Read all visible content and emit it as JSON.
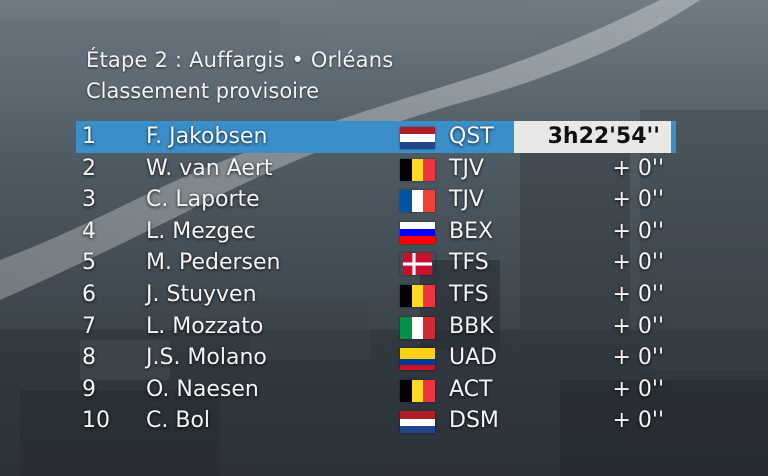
{
  "stage": {
    "title": "Étape 2 : Auffargis • Orléans",
    "subtitle": "Classement provisoire"
  },
  "colors": {
    "leader_bar": "#3b8fc9",
    "time_box": "#e8e8e6",
    "text": "#f4f4f4"
  },
  "standings": [
    {
      "rank": "1",
      "name": "F. Jakobsen",
      "flag": "netherlands-flag-icon",
      "team": "QST",
      "time": "3h22'54''"
    },
    {
      "rank": "2",
      "name": "W. van Aert",
      "flag": "belgium-flag-icon",
      "team": "TJV",
      "time": "+  0''"
    },
    {
      "rank": "3",
      "name": "C. Laporte",
      "flag": "france-flag-icon",
      "team": "TJV",
      "time": "+  0''"
    },
    {
      "rank": "4",
      "name": "L. Mezgec",
      "flag": "slovenia-flag-icon",
      "team": "BEX",
      "time": "+  0''"
    },
    {
      "rank": "5",
      "name": "M. Pedersen",
      "flag": "denmark-flag-icon",
      "team": "TFS",
      "time": "+  0''"
    },
    {
      "rank": "6",
      "name": "J. Stuyven",
      "flag": "belgium-flag-icon",
      "team": "TFS",
      "time": "+  0''"
    },
    {
      "rank": "7",
      "name": "L. Mozzato",
      "flag": "italy-flag-icon",
      "team": "BBK",
      "time": "+  0''"
    },
    {
      "rank": "8",
      "name": "J.S. Molano",
      "flag": "colombia-flag-icon",
      "team": "UAD",
      "time": "+  0''"
    },
    {
      "rank": "9",
      "name": "O. Naesen",
      "flag": "belgium-flag-icon",
      "team": "ACT",
      "time": "+  0''"
    },
    {
      "rank": "10",
      "name": "C. Bol",
      "flag": "netherlands-flag-icon",
      "team": "DSM",
      "time": "+  0''"
    }
  ]
}
